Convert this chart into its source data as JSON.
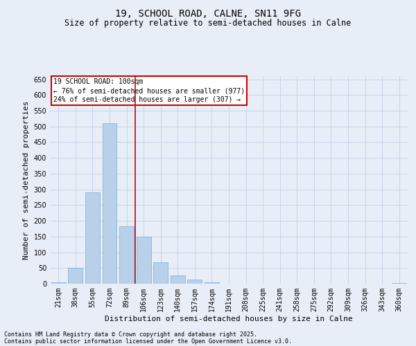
{
  "title": "19, SCHOOL ROAD, CALNE, SN11 9FG",
  "subtitle": "Size of property relative to semi-detached houses in Calne",
  "xlabel": "Distribution of semi-detached houses by size in Calne",
  "ylabel": "Number of semi-detached properties",
  "categories": [
    "21sqm",
    "38sqm",
    "55sqm",
    "72sqm",
    "89sqm",
    "106sqm",
    "123sqm",
    "140sqm",
    "157sqm",
    "174sqm",
    "191sqm",
    "208sqm",
    "225sqm",
    "241sqm",
    "258sqm",
    "275sqm",
    "292sqm",
    "309sqm",
    "326sqm",
    "343sqm",
    "360sqm"
  ],
  "values": [
    5,
    50,
    290,
    510,
    183,
    150,
    68,
    27,
    13,
    4,
    0,
    0,
    0,
    0,
    0,
    0,
    0,
    0,
    0,
    0,
    3
  ],
  "bar_color": "#B8D0EA",
  "bar_edge_color": "#7AAFD4",
  "grid_color": "#C8D4E8",
  "background_color": "#E8EEF8",
  "vline_color": "#CC0000",
  "annotation_title": "19 SCHOOL ROAD: 100sqm",
  "annotation_line1": "← 76% of semi-detached houses are smaller (977)",
  "annotation_line2": "24% of semi-detached houses are larger (307) →",
  "annotation_box_color": "#CC0000",
  "footnote1": "Contains HM Land Registry data © Crown copyright and database right 2025.",
  "footnote2": "Contains public sector information licensed under the Open Government Licence v3.0.",
  "ylim": [
    0,
    660
  ],
  "yticks": [
    0,
    50,
    100,
    150,
    200,
    250,
    300,
    350,
    400,
    450,
    500,
    550,
    600,
    650
  ],
  "title_fontsize": 10,
  "subtitle_fontsize": 8.5,
  "axis_label_fontsize": 8,
  "tick_fontsize": 7,
  "annotation_fontsize": 7,
  "footnote_fontsize": 6
}
